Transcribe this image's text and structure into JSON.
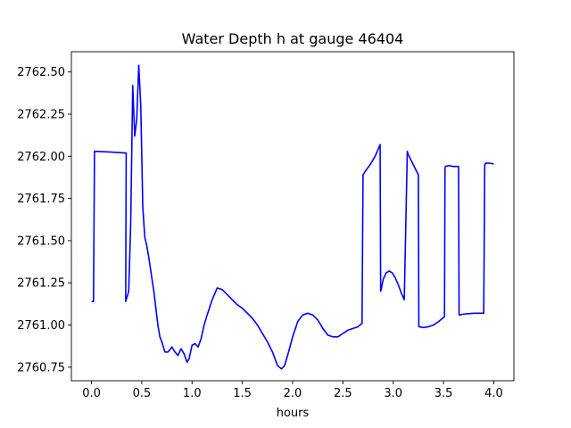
{
  "chart_data": {
    "type": "line",
    "title": "Water Depth h at gauge 46404",
    "xlabel": "hours",
    "ylabel": "",
    "xlim": [
      -0.2,
      4.2
    ],
    "ylim": [
      2760.67,
      2762.62
    ],
    "xticks": [
      0.0,
      0.5,
      1.0,
      1.5,
      2.0,
      2.5,
      3.0,
      3.5,
      4.0
    ],
    "xtick_labels": [
      "0.0",
      "0.5",
      "1.0",
      "1.5",
      "2.0",
      "2.5",
      "3.0",
      "3.5",
      "4.0"
    ],
    "yticks": [
      2760.75,
      2761.0,
      2761.25,
      2761.5,
      2761.75,
      2762.0,
      2762.25,
      2762.5
    ],
    "ytick_labels": [
      "2760.75",
      "2761.00",
      "2761.25",
      "2761.50",
      "2761.75",
      "2762.00",
      "2762.25",
      "2762.50"
    ],
    "grid": false,
    "colors": {
      "line": "#0000ff",
      "axes": "#000000",
      "background": "#ffffff"
    },
    "series": [
      {
        "x": [
          0.0,
          0.02,
          0.03,
          0.2,
          0.34,
          0.345,
          0.34,
          0.37,
          0.39,
          0.41,
          0.43,
          0.45,
          0.47,
          0.49,
          0.51,
          0.53,
          0.55,
          0.57,
          0.6,
          0.62,
          0.64,
          0.66,
          0.68,
          0.7,
          0.73,
          0.76,
          0.8,
          0.83,
          0.86,
          0.89,
          0.92,
          0.95,
          0.97,
          1.0,
          1.03,
          1.06,
          1.09,
          1.12,
          1.15,
          1.2,
          1.25,
          1.3,
          1.35,
          1.4,
          1.45,
          1.5,
          1.55,
          1.6,
          1.65,
          1.7,
          1.75,
          1.8,
          1.85,
          1.89,
          1.92,
          1.95,
          2.0,
          2.05,
          2.1,
          2.15,
          2.2,
          2.25,
          2.3,
          2.35,
          2.4,
          2.45,
          2.5,
          2.55,
          2.6,
          2.65,
          2.69,
          2.7,
          2.72,
          2.77,
          2.82,
          2.87,
          2.875,
          2.88,
          2.9,
          2.93,
          2.96,
          2.99,
          3.02,
          3.05,
          3.08,
          3.11,
          3.14,
          3.145,
          3.15,
          3.2,
          3.25,
          3.255,
          3.26,
          3.3,
          3.35,
          3.4,
          3.45,
          3.51,
          3.515,
          3.52,
          3.55,
          3.6,
          3.65,
          3.655,
          3.66,
          3.7,
          3.8,
          3.9,
          3.91,
          3.92,
          3.95,
          4.0
        ],
        "y": [
          2761.14,
          2761.14,
          2762.03,
          2762.025,
          2762.02,
          2762.02,
          2761.14,
          2761.2,
          2761.6,
          2762.42,
          2762.12,
          2762.22,
          2762.54,
          2762.3,
          2761.7,
          2761.52,
          2761.47,
          2761.4,
          2761.28,
          2761.2,
          2761.1,
          2761.0,
          2760.93,
          2760.9,
          2760.84,
          2760.84,
          2760.87,
          2760.84,
          2760.82,
          2760.86,
          2760.83,
          2760.78,
          2760.8,
          2760.88,
          2760.89,
          2760.87,
          2760.92,
          2761.0,
          2761.06,
          2761.15,
          2761.22,
          2761.21,
          2761.18,
          2761.15,
          2761.12,
          2761.1,
          2761.07,
          2761.04,
          2761.0,
          2760.95,
          2760.9,
          2760.84,
          2760.76,
          2760.74,
          2760.76,
          2760.82,
          2760.93,
          2761.02,
          2761.06,
          2761.07,
          2761.06,
          2761.03,
          2760.98,
          2760.94,
          2760.93,
          2760.93,
          2760.95,
          2760.97,
          2760.98,
          2760.99,
          2761.01,
          2761.89,
          2761.91,
          2761.95,
          2762.0,
          2762.07,
          2761.2,
          2761.21,
          2761.27,
          2761.31,
          2761.32,
          2761.31,
          2761.28,
          2761.24,
          2761.19,
          2761.15,
          2762.03,
          2762.02,
          2762.01,
          2761.95,
          2761.89,
          2760.99,
          2760.99,
          2760.985,
          2760.99,
          2761.0,
          2761.02,
          2761.05,
          2761.93,
          2761.94,
          2761.945,
          2761.94,
          2761.94,
          2761.06,
          2761.06,
          2761.065,
          2761.07,
          2761.07,
          2761.95,
          2761.96,
          2761.96,
          2761.955
        ]
      }
    ]
  }
}
